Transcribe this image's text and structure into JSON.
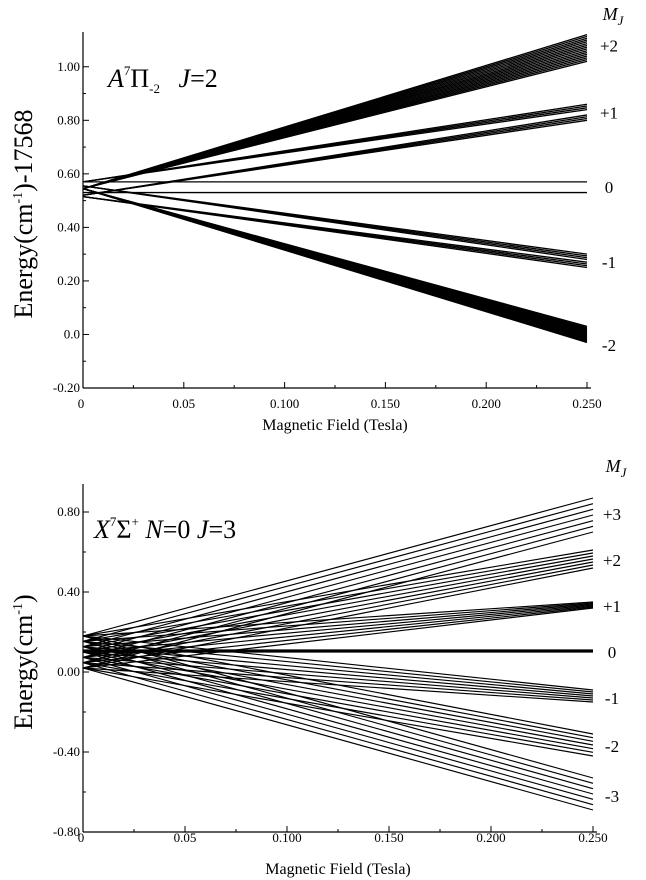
{
  "chart_data": [
    {
      "type": "line",
      "title_parts": {
        "main": "A",
        "sup": "7",
        "sym": "Π",
        "sub": "-2",
        "j": "J=2"
      },
      "xlabel": "Magnetic Field (Tesla)",
      "ylabel": "Energy(cm⁻¹)-17568",
      "xlim": [
        0,
        0.25
      ],
      "ylim": [
        -0.2,
        1.1
      ],
      "x_ticks": [
        0,
        0.05,
        0.1,
        0.15,
        0.2,
        0.25
      ],
      "x_tick_labels": [
        "0",
        "0.05",
        "0.100",
        "0.150",
        "0.200",
        "0.250"
      ],
      "y_ticks": [
        -0.2,
        0.0,
        0.2,
        0.4,
        0.6,
        0.8,
        1.0
      ],
      "y_tick_labels": [
        "-0.20",
        "0.0",
        "0.20",
        "0.40",
        "0.60",
        "0.80",
        "1.00"
      ],
      "mj_header": "M_J",
      "mj_labels": [
        {
          "text": "+2",
          "y": 1.08
        },
        {
          "text": "+1",
          "y": 0.83
        },
        {
          "text": "0",
          "y": 0.55
        },
        {
          "text": "-1",
          "y": 0.27
        },
        {
          "text": "-2",
          "y": -0.04
        }
      ],
      "series": [
        {
          "label": "M_J=+2",
          "start": 0.545,
          "end_min": 1.02,
          "end_max": 1.12,
          "count": 16
        },
        {
          "label": "M_J=+1 (upper)",
          "start": 0.57,
          "end_min": 0.84,
          "end_max": 0.86,
          "count": 4
        },
        {
          "label": "M_J=+1 (lower)",
          "start": 0.52,
          "end_min": 0.8,
          "end_max": 0.82,
          "count": 4
        },
        {
          "label": "M_J=0 (upper)",
          "start": 0.57,
          "end_min": 0.57,
          "end_max": 0.57,
          "count": 1
        },
        {
          "label": "M_J=0 (lower)",
          "start": 0.53,
          "end_min": 0.53,
          "end_max": 0.53,
          "count": 1
        },
        {
          "label": "M_J=-1 (upper)",
          "start": 0.555,
          "end_min": 0.28,
          "end_max": 0.3,
          "count": 4
        },
        {
          "label": "M_J=-1 (lower)",
          "start": 0.515,
          "end_min": 0.25,
          "end_max": 0.27,
          "count": 4
        },
        {
          "label": "M_J=-2",
          "start": 0.545,
          "end_min": -0.03,
          "end_max": 0.03,
          "count": 16
        }
      ]
    },
    {
      "type": "line",
      "title_parts": {
        "main": "X",
        "sup": "7",
        "sym": "Σ",
        "sup2": "+",
        "n": "N=0",
        "j": "J=3"
      },
      "xlabel": "Magnetic Field (Tesla)",
      "ylabel": "Energy(cm⁻¹)",
      "xlim": [
        0,
        0.25
      ],
      "ylim": [
        -0.8,
        0.9
      ],
      "x_ticks": [
        0,
        0.05,
        0.1,
        0.15,
        0.2,
        0.25
      ],
      "x_tick_labels": [
        "0",
        "0.05",
        "0.100",
        "0.150",
        "0.200",
        "0.250"
      ],
      "y_ticks": [
        -0.8,
        -0.4,
        0.0,
        0.4,
        0.8
      ],
      "y_tick_labels": [
        "-0.80",
        "-0.40",
        "0.00",
        "0.40",
        "0.80"
      ],
      "mj_header": "M_J",
      "mj_labels": [
        {
          "text": "+3",
          "y": 0.79
        },
        {
          "text": "+2",
          "y": 0.56
        },
        {
          "text": "+1",
          "y": 0.33
        },
        {
          "text": "0",
          "y": 0.1
        },
        {
          "text": "-1",
          "y": -0.13
        },
        {
          "text": "-2",
          "y": -0.37
        },
        {
          "text": "-3",
          "y": -0.62
        }
      ],
      "series": [
        {
          "label": "M_J=+3",
          "start_min": 0.02,
          "start_max": 0.18,
          "end_min": 0.7,
          "end_max": 0.87,
          "count": 7
        },
        {
          "label": "M_J=+2",
          "start_min": 0.02,
          "start_max": 0.18,
          "end_min": 0.52,
          "end_max": 0.61,
          "count": 7
        },
        {
          "label": "M_J=+1",
          "start_min": 0.02,
          "start_max": 0.18,
          "end_min": 0.32,
          "end_max": 0.35,
          "count": 7
        },
        {
          "label": "M_J=0",
          "start_min": 0.1,
          "start_max": 0.11,
          "end_min": 0.1,
          "end_max": 0.11,
          "count": 3
        },
        {
          "label": "M_J=-1",
          "start_min": 0.02,
          "start_max": 0.18,
          "end_min": -0.15,
          "end_max": -0.09,
          "count": 7
        },
        {
          "label": "M_J=-2",
          "start_min": 0.02,
          "start_max": 0.18,
          "end_min": -0.42,
          "end_max": -0.31,
          "count": 7
        },
        {
          "label": "M_J=-3",
          "start_min": 0.02,
          "start_max": 0.18,
          "end_min": -0.69,
          "end_max": -0.53,
          "count": 7
        }
      ]
    }
  ]
}
